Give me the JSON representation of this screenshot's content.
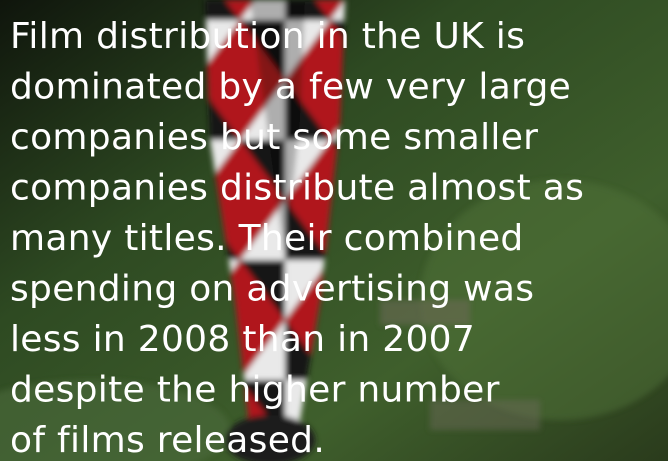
{
  "text": {
    "lines": [
      "Film distribution in the UK is",
      "dominated by a few very large",
      "companies but some smaller",
      "companies distribute almost as",
      "many titles. Their combined",
      "spending on advertising was",
      "less in 2008 than in 2007",
      "despite the higher number",
      "of films released."
    ]
  }
}
